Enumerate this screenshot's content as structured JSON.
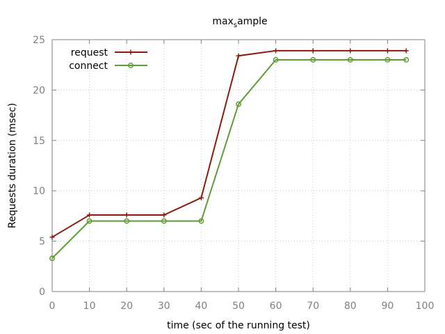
{
  "chart_data": {
    "type": "line",
    "title": "maxsample",
    "title_main": "max",
    "title_sub": "s",
    "title_rest": "ample",
    "xlabel": "time (sec of the running test)",
    "ylabel": "Requests duration (msec)",
    "xlim": [
      0,
      100
    ],
    "ylim": [
      0,
      25
    ],
    "xticks": [
      0,
      10,
      20,
      30,
      40,
      50,
      60,
      70,
      80,
      90,
      100
    ],
    "yticks": [
      0,
      5,
      10,
      15,
      20,
      25
    ],
    "grid": true,
    "legend_position": "top-left",
    "series": [
      {
        "name": "request",
        "color": "#8b1a0e",
        "marker": "plus",
        "x": [
          0,
          10,
          20,
          30,
          40,
          50,
          60,
          70,
          80,
          90,
          95
        ],
        "y": [
          5.4,
          7.6,
          7.6,
          7.6,
          9.3,
          23.4,
          23.9,
          23.9,
          23.9,
          23.9,
          23.9
        ]
      },
      {
        "name": "connect",
        "color": "#5e9c36",
        "marker": "circle",
        "x": [
          0,
          10,
          20,
          30,
          40,
          50,
          60,
          70,
          80,
          90,
          95
        ],
        "y": [
          3.3,
          7.0,
          7.0,
          7.0,
          7.0,
          18.6,
          23.0,
          23.0,
          23.0,
          23.0,
          23.0
        ]
      }
    ]
  }
}
